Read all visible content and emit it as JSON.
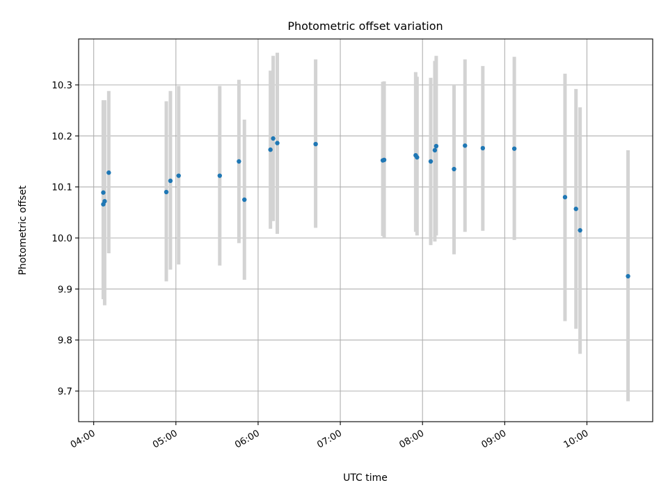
{
  "chart_data": {
    "type": "scatter",
    "title": "Photometric offset variation",
    "xlabel": "UTC time",
    "ylabel": "Photometric offset",
    "x_unit": "UTC hour",
    "xlim": [
      "03:49",
      "10:48"
    ],
    "ylim": [
      9.64,
      10.39
    ],
    "grid": true,
    "x_ticks": [
      "04:00",
      "05:00",
      "06:00",
      "07:00",
      "08:00",
      "09:00",
      "10:00"
    ],
    "y_ticks": [
      "9.7",
      "9.8",
      "9.9",
      "10.0",
      "10.1",
      "10.2",
      "10.3"
    ],
    "point_color": "#1f77b4",
    "errorbar_color": "#d3d3d3",
    "points": [
      {
        "x": "04:07",
        "y": 10.089,
        "err_low": 9.91,
        "err_high": 10.27
      },
      {
        "x": "04:08",
        "y": 10.072,
        "err_low": 9.868,
        "err_high": 10.27
      },
      {
        "x": "04:07",
        "y": 10.066,
        "err_low": 9.88,
        "err_high": 10.26
      },
      {
        "x": "04:11",
        "y": 10.128,
        "err_low": 9.97,
        "err_high": 10.288
      },
      {
        "x": "04:53",
        "y": 10.09,
        "err_low": 9.915,
        "err_high": 10.268
      },
      {
        "x": "04:56",
        "y": 10.112,
        "err_low": 9.938,
        "err_high": 10.288
      },
      {
        "x": "05:02",
        "y": 10.122,
        "err_low": 9.948,
        "err_high": 10.298
      },
      {
        "x": "05:32",
        "y": 10.122,
        "err_low": 9.946,
        "err_high": 10.298
      },
      {
        "x": "05:46",
        "y": 10.15,
        "err_low": 9.99,
        "err_high": 10.31
      },
      {
        "x": "05:50",
        "y": 10.075,
        "err_low": 9.918,
        "err_high": 10.232
      },
      {
        "x": "06:09",
        "y": 10.173,
        "err_low": 10.018,
        "err_high": 10.328
      },
      {
        "x": "06:11",
        "y": 10.195,
        "err_low": 10.033,
        "err_high": 10.357
      },
      {
        "x": "06:14",
        "y": 10.186,
        "err_low": 10.008,
        "err_high": 10.363
      },
      {
        "x": "06:42",
        "y": 10.184,
        "err_low": 10.02,
        "err_high": 10.35
      },
      {
        "x": "07:31",
        "y": 10.152,
        "err_low": 10.004,
        "err_high": 10.306
      },
      {
        "x": "07:32",
        "y": 10.153,
        "err_low": 10.0,
        "err_high": 10.307
      },
      {
        "x": "07:55",
        "y": 10.162,
        "err_low": 10.012,
        "err_high": 10.325
      },
      {
        "x": "07:56",
        "y": 10.158,
        "err_low": 10.005,
        "err_high": 10.316
      },
      {
        "x": "08:06",
        "y": 10.15,
        "err_low": 9.986,
        "err_high": 10.314
      },
      {
        "x": "08:09",
        "y": 10.172,
        "err_low": 9.993,
        "err_high": 10.347
      },
      {
        "x": "08:10",
        "y": 10.18,
        "err_low": 10.005,
        "err_high": 10.357
      },
      {
        "x": "08:23",
        "y": 10.135,
        "err_low": 9.968,
        "err_high": 10.3
      },
      {
        "x": "08:31",
        "y": 10.181,
        "err_low": 10.012,
        "err_high": 10.35
      },
      {
        "x": "08:44",
        "y": 10.176,
        "err_low": 10.014,
        "err_high": 10.337
      },
      {
        "x": "09:07",
        "y": 10.175,
        "err_low": 9.996,
        "err_high": 10.355
      },
      {
        "x": "09:44",
        "y": 10.08,
        "err_low": 9.837,
        "err_high": 10.322
      },
      {
        "x": "09:52",
        "y": 10.057,
        "err_low": 9.822,
        "err_high": 10.292
      },
      {
        "x": "09:55",
        "y": 10.015,
        "err_low": 9.773,
        "err_high": 10.256
      },
      {
        "x": "10:30",
        "y": 9.925,
        "err_low": 9.68,
        "err_high": 10.172
      }
    ]
  }
}
